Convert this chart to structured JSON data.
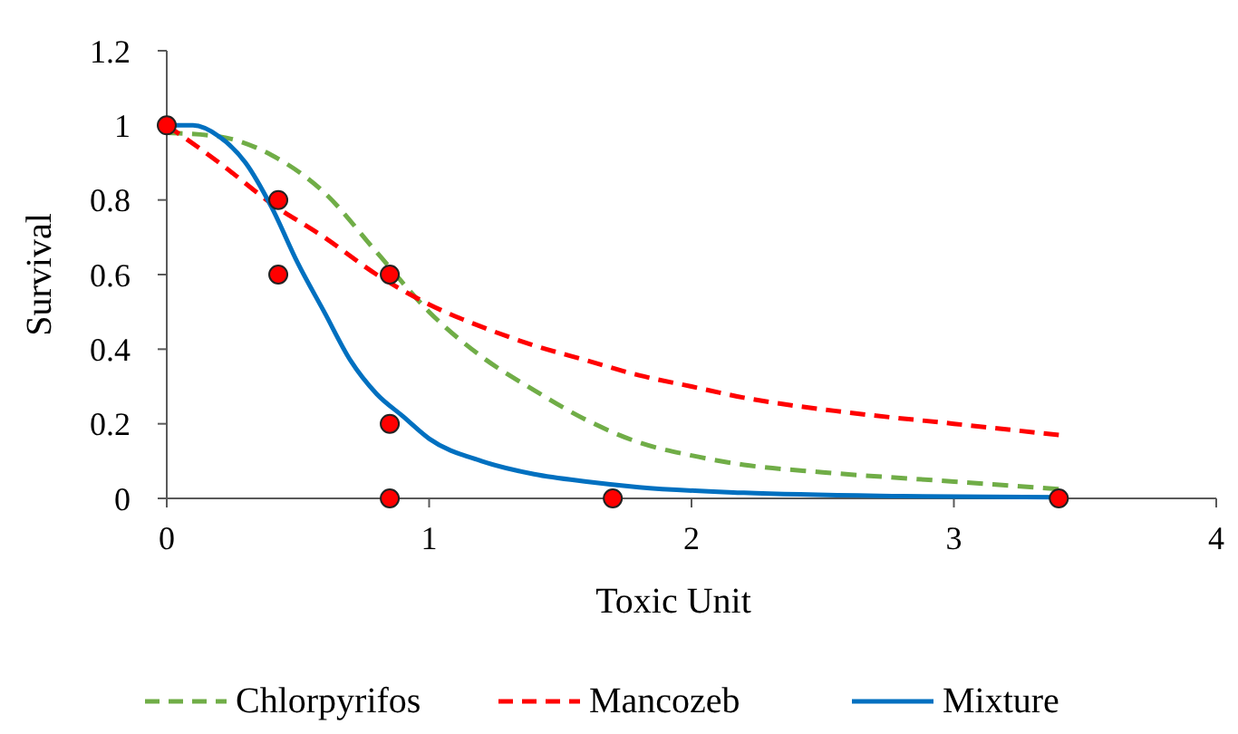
{
  "chart_data": {
    "type": "line",
    "xlabel": "Toxic Unit",
    "ylabel": "Survival",
    "xlim": [
      0,
      4
    ],
    "xticks": [
      0,
      1,
      2,
      3,
      4
    ],
    "ylim": [
      0,
      1.2
    ],
    "yticks": [
      0,
      0.2,
      0.4,
      0.6,
      0.8,
      1,
      1.2
    ],
    "grid": false,
    "legend": "bottom",
    "series": [
      {
        "name": "Chlorpyrifos",
        "color": "#70ad47",
        "line_style": "dashed",
        "x": [
          0,
          0.2,
          0.4,
          0.6,
          0.8,
          1,
          1.2,
          1.4,
          1.6,
          1.8,
          2,
          2.2,
          2.5,
          3,
          3.4
        ],
        "values": [
          0.98,
          0.97,
          0.92,
          0.82,
          0.66,
          0.5,
          0.38,
          0.29,
          0.21,
          0.15,
          0.115,
          0.09,
          0.07,
          0.045,
          0.025
        ]
      },
      {
        "name": "Mancozeb",
        "color": "#ff0000",
        "line_style": "dashed",
        "x": [
          0,
          0.2,
          0.4,
          0.6,
          0.8,
          1,
          1.2,
          1.4,
          1.6,
          1.8,
          2,
          2.2,
          2.6,
          3,
          3.4
        ],
        "values": [
          1,
          0.9,
          0.79,
          0.7,
          0.6,
          0.52,
          0.46,
          0.41,
          0.37,
          0.33,
          0.3,
          0.27,
          0.23,
          0.2,
          0.17
        ]
      },
      {
        "name": "Mixture",
        "color": "#0070c0",
        "line_style": "solid",
        "x": [
          0,
          0.1,
          0.2,
          0.3,
          0.4,
          0.5,
          0.6,
          0.7,
          0.8,
          0.9,
          1,
          1.2,
          1.4,
          1.6,
          1.8,
          2.2,
          2.8,
          3.4
        ],
        "values": [
          1,
          1,
          0.97,
          0.9,
          0.78,
          0.63,
          0.5,
          0.37,
          0.28,
          0.22,
          0.16,
          0.1,
          0.065,
          0.045,
          0.03,
          0.015,
          0.006,
          0.003
        ]
      },
      {
        "type": "scatter",
        "color": "#ff0000",
        "marker": "circle",
        "x": [
          0,
          0.425,
          0.425,
          0.85,
          0.85,
          0.85,
          1.7,
          3.4
        ],
        "values": [
          1,
          0.8,
          0.6,
          0.6,
          0.2,
          0,
          0,
          0
        ]
      }
    ]
  }
}
